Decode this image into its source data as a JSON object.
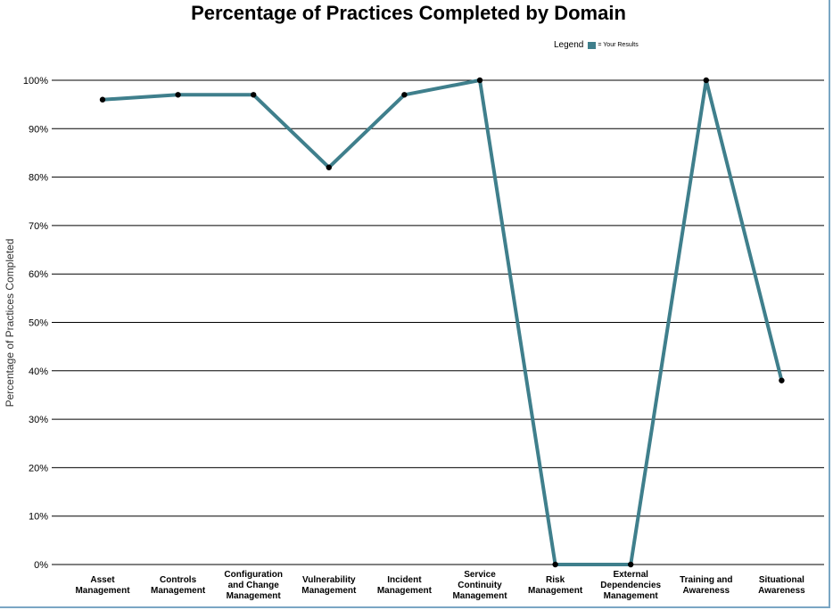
{
  "chart_data": {
    "type": "line",
    "title": "Percentage of Practices Completed by Domain",
    "ylabel": "Percentage of Practices Completed",
    "xlabel": "",
    "ylim": [
      0,
      100
    ],
    "yticks": [
      "0%",
      "10%",
      "20%",
      "30%",
      "40%",
      "50%",
      "60%",
      "70%",
      "80%",
      "90%",
      "100%"
    ],
    "categories": [
      "Asset Management",
      "Controls Management",
      "Configuration and Change Management",
      "Vulnerability Management",
      "Incident Management",
      "Service Continuity Management",
      "Risk Management",
      "External Dependencies Management",
      "Training and Awareness",
      "Situational Awareness"
    ],
    "category_label_lines": [
      [
        "Asset",
        "Management"
      ],
      [
        "Controls",
        "Management"
      ],
      [
        "Configuration",
        "and Change",
        "Management"
      ],
      [
        "Vulnerability",
        "Management"
      ],
      [
        "Incident",
        "Management"
      ],
      [
        "Service",
        "Continuity",
        "Management"
      ],
      [
        "Risk",
        "Management"
      ],
      [
        "External",
        "Dependencies",
        "Management"
      ],
      [
        "Training and",
        "Awareness"
      ],
      [
        "Situational",
        "Awareness"
      ]
    ],
    "series": [
      {
        "name": "Your Results",
        "values": [
          96,
          97,
          97,
          82,
          97,
          100,
          0,
          0,
          100,
          38
        ]
      }
    ],
    "legend": {
      "title": "Legend",
      "entry": "= Your Results",
      "position": "top-right"
    },
    "grid": true,
    "colors": {
      "line": "#3f7f8c",
      "marker": "#000000",
      "grid": "#000000"
    }
  }
}
